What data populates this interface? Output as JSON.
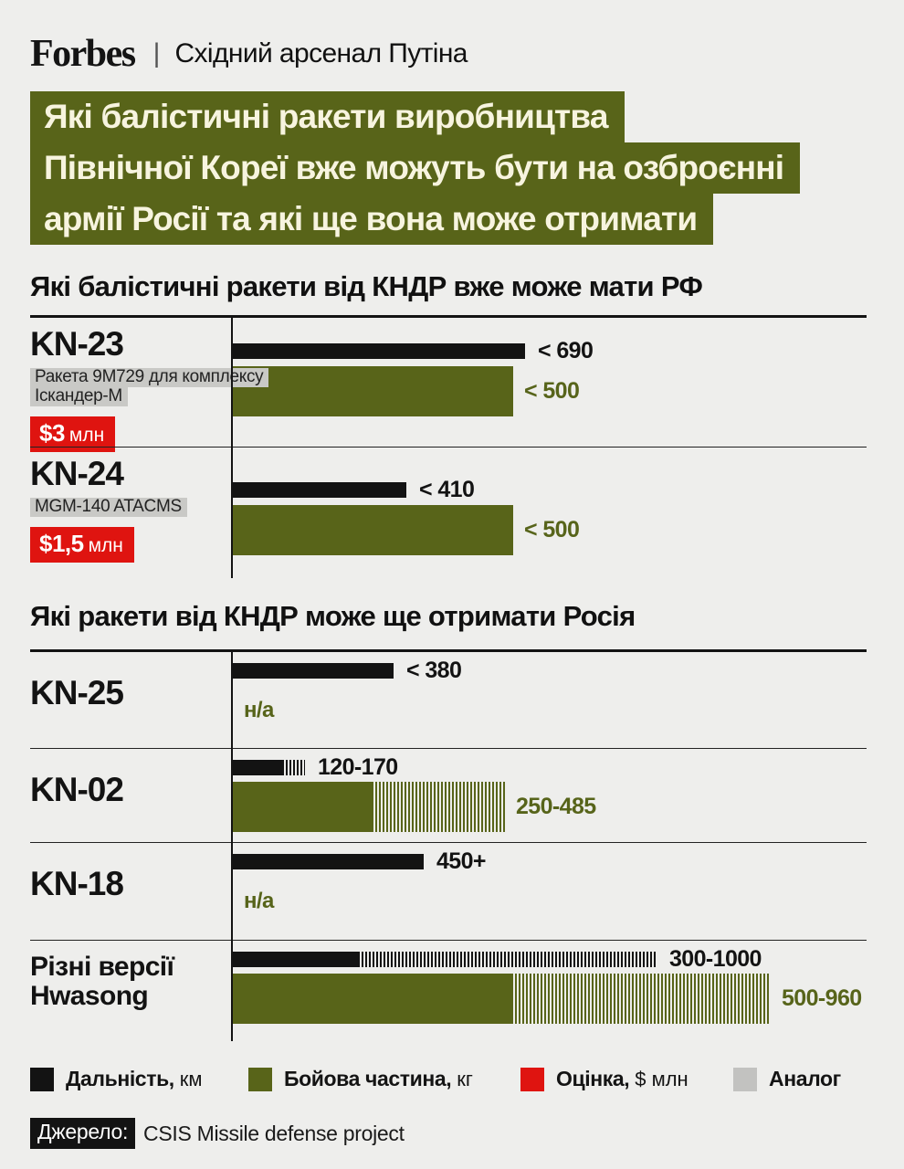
{
  "header": {
    "logo": "Forbes",
    "divider": "|",
    "subtitle": "Східний арсенал Путіна"
  },
  "main_title": {
    "lines": [
      "Які балістичні ракети виробництва",
      "Північної Кореї вже можуть бути на озброєнні",
      "армії Росії та які ще вона може отримати"
    ]
  },
  "colors": {
    "background": "#eeeeec",
    "olive": "#586419",
    "black": "#131313",
    "red": "#df1410",
    "analog_badge_gray": "#c9c9c6",
    "legend_gray": "#c2c2c0",
    "title_text": "#f7f4df"
  },
  "chart_data": {
    "type": "bar",
    "orientation": "horizontal",
    "units": {
      "range": "км",
      "warhead": "кг",
      "price": "$ млн"
    },
    "axis": {
      "range_km_max": 1000,
      "warhead_kg_max": 960,
      "hatch_means": "interval (range of estimates)"
    },
    "sections": [
      {
        "heading": "Які балістичні ракети від КНДР вже може мати РФ",
        "rows": [
          {
            "name": "KN-23",
            "analog_lines": [
              "Ракета 9М729 для комплексу",
              "Іскандер-М"
            ],
            "price": {
              "amount": "$3",
              "unit": "млн"
            },
            "range": {
              "label": "< 690",
              "solid": 690,
              "hatch": null
            },
            "warhead": {
              "label": "< 500",
              "solid": 500,
              "hatch": null
            }
          },
          {
            "name": "KN-24",
            "analog_lines": [
              "MGM-140 ATACMS"
            ],
            "price": {
              "amount": "$1,5",
              "unit": "млн"
            },
            "range": {
              "label": "< 410",
              "solid": 410,
              "hatch": null
            },
            "warhead": {
              "label": "< 500",
              "solid": 500,
              "hatch": null
            }
          }
        ]
      },
      {
        "heading": "Які ракети від КНДР може ще отримати Росія",
        "rows": [
          {
            "name": "KN-25",
            "range": {
              "label": "< 380",
              "solid": 380,
              "hatch": null
            },
            "warhead": {
              "label": "н/а",
              "solid": null,
              "hatch": null
            }
          },
          {
            "name": "KN-02",
            "range": {
              "label": "120-170",
              "solid": 120,
              "hatch": 170
            },
            "warhead": {
              "label": "250-485",
              "solid": 250,
              "hatch": 485
            }
          },
          {
            "name": "KN-18",
            "range": {
              "label": "450+",
              "solid": 450,
              "hatch": null
            },
            "warhead": {
              "label": "н/а",
              "solid": null,
              "hatch": null
            }
          },
          {
            "name": "Різні версії Hwasong",
            "range": {
              "label": "300-1000",
              "solid": 300,
              "hatch": 1000
            },
            "warhead": {
              "label": "500-960",
              "solid": 500,
              "hatch": 960
            }
          }
        ]
      }
    ],
    "legend": [
      {
        "label": "Дальність,",
        "unit": "км",
        "swatch": "#131313"
      },
      {
        "label": "Бойова частина,",
        "unit": "кг",
        "swatch": "#586419"
      },
      {
        "label": "Оцінка,",
        "unit": "$ млн",
        "swatch": "#df1410"
      },
      {
        "label": "Аналог",
        "unit": "",
        "swatch": "#c2c2c0"
      }
    ],
    "source": {
      "badge": "Джерело:",
      "text": "CSIS Missile defense project"
    }
  }
}
